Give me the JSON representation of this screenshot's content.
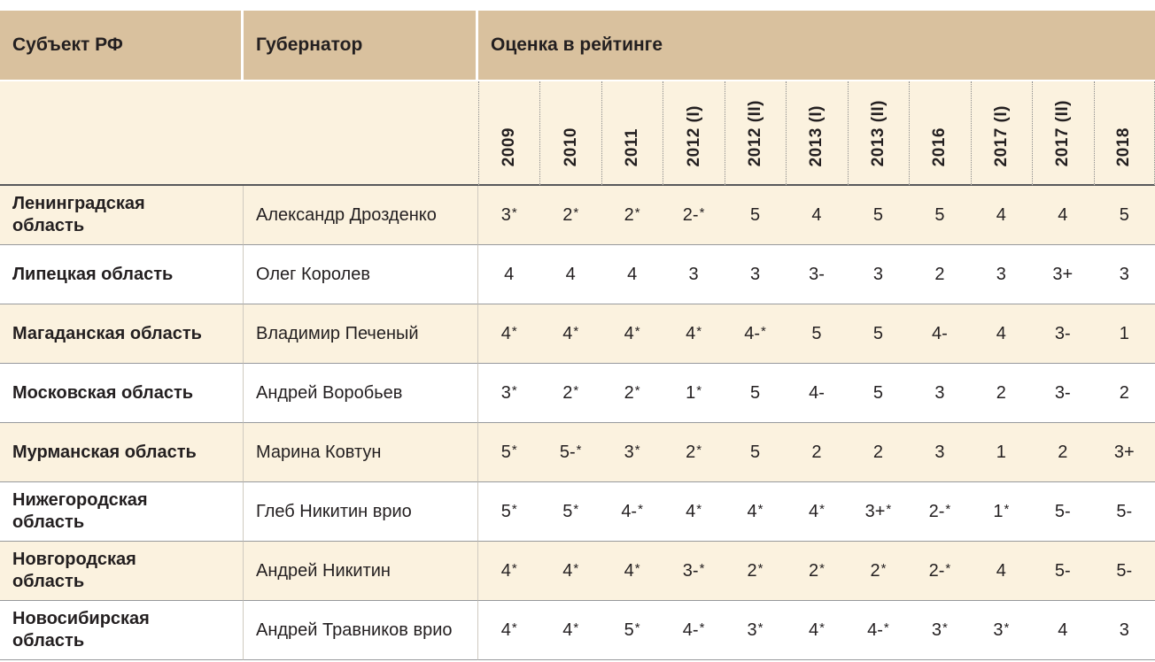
{
  "colors": {
    "header_band_bg": "#d9c19e",
    "row_cream_bg": "#fbf2df",
    "row_white_bg": "#ffffff",
    "year_header_rule": "#58595b",
    "row_separator": "#97999c",
    "text": "#231f20"
  },
  "chart_data": {
    "type": "table",
    "column_headers": {
      "subject": "Субъект РФ",
      "governor": "Губернатор",
      "rating_group": "Оценка в рейтинге"
    },
    "year_columns": [
      "2009",
      "2010",
      "2011",
      "2012 (I)",
      "2012 (II)",
      "2013 (I)",
      "2013 (II)",
      "2016",
      "2017 (I)",
      "2017 (II)",
      "2018"
    ],
    "rows": [
      {
        "subject": "Ленинградская область",
        "governor": "Александр Дрозденко",
        "ratings": [
          "3*",
          "2*",
          "2*",
          "2-*",
          "5",
          "4",
          "5",
          "5",
          "4",
          "4",
          "5"
        ]
      },
      {
        "subject": "Липецкая область",
        "governor": "Олег Королев",
        "ratings": [
          "4",
          "4",
          "4",
          "3",
          "3",
          "3-",
          "3",
          "2",
          "3",
          "3+",
          "3"
        ]
      },
      {
        "subject": "Магаданская область",
        "governor": "Владимир Печеный",
        "ratings": [
          "4*",
          "4*",
          "4*",
          "4*",
          "4-*",
          "5",
          "5",
          "4-",
          "4",
          "3-",
          "1"
        ]
      },
      {
        "subject": "Московская область",
        "governor": "Андрей Воробьев",
        "ratings": [
          "3*",
          "2*",
          "2*",
          "1*",
          "5",
          "4-",
          "5",
          "3",
          "2",
          "3-",
          "2"
        ]
      },
      {
        "subject": "Мурманская область",
        "governor": "Марина Ковтун",
        "ratings": [
          "5*",
          "5-*",
          "3*",
          "2*",
          "5",
          "2",
          "2",
          "3",
          "1",
          "2",
          "3+"
        ]
      },
      {
        "subject": "Нижегородская область",
        "governor": "Глеб Никитин врио",
        "ratings": [
          "5*",
          "5*",
          "4-*",
          "4*",
          "4*",
          "4*",
          "3+*",
          "2-*",
          "1*",
          "5-",
          "5-"
        ]
      },
      {
        "subject": "Новгородская область",
        "governor": "Андрей Никитин",
        "ratings": [
          "4*",
          "4*",
          "4*",
          "3-*",
          "2*",
          "2*",
          "2*",
          "2-*",
          "4",
          "5-",
          "5-"
        ]
      },
      {
        "subject": "Новосибирская область",
        "governor": "Андрей Травников врио",
        "ratings": [
          "4*",
          "4*",
          "5*",
          "4-*",
          "3*",
          "4*",
          "4-*",
          "3*",
          "3*",
          "4",
          "3"
        ]
      }
    ]
  }
}
